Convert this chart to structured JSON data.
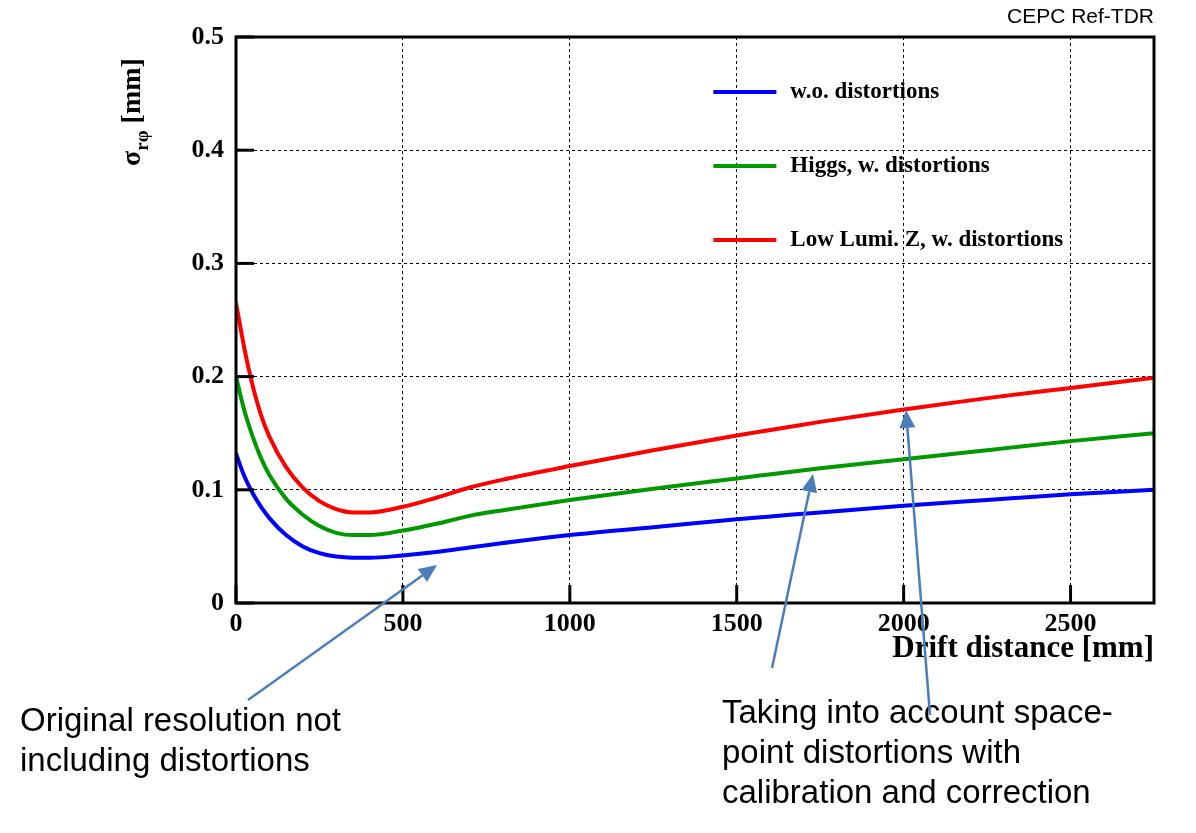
{
  "chart_data": {
    "type": "line",
    "title": "CEPC Ref-TDR",
    "xlabel": "Drift distance [mm]",
    "ylabel": "σ$_{rφ}$ [mm]",
    "x": [
      0,
      25,
      50,
      75,
      100,
      150,
      200,
      250,
      300,
      350,
      400,
      500,
      600,
      700,
      800,
      1000,
      1250,
      1500,
      1750,
      2000,
      2250,
      2500,
      2750
    ],
    "series": [
      {
        "name": "w.o. distortions",
        "color": "#0000ff",
        "values": [
          0.132,
          0.112,
          0.097,
          0.085,
          0.075,
          0.06,
          0.05,
          0.044,
          0.041,
          0.04,
          0.04,
          0.042,
          0.045,
          0.049,
          0.053,
          0.06,
          0.067,
          0.074,
          0.08,
          0.086,
          0.091,
          0.096,
          0.1
        ]
      },
      {
        "name": "Higgs, w. distortions",
        "color": "#009900",
        "values": [
          0.2,
          0.17,
          0.147,
          0.128,
          0.113,
          0.092,
          0.078,
          0.068,
          0.062,
          0.06,
          0.06,
          0.064,
          0.07,
          0.077,
          0.082,
          0.091,
          0.101,
          0.11,
          0.119,
          0.127,
          0.135,
          0.143,
          0.15
        ]
      },
      {
        "name": "Low Lumi. Z, w. distortions",
        "color": "#ff0000",
        "values": [
          0.265,
          0.225,
          0.192,
          0.166,
          0.147,
          0.12,
          0.102,
          0.09,
          0.083,
          0.08,
          0.08,
          0.085,
          0.093,
          0.102,
          0.109,
          0.121,
          0.135,
          0.148,
          0.16,
          0.171,
          0.181,
          0.19,
          0.199
        ]
      }
    ],
    "xlim": [
      0,
      2750
    ],
    "xticks": [
      0,
      500,
      1000,
      1500,
      2000,
      2500
    ],
    "ylim": [
      0,
      0.5
    ],
    "yticks": [
      0,
      {
        "value": 0.1,
        "label": "0.1"
      },
      {
        "value": 0.2,
        "label": "0.2"
      },
      {
        "value": 0.3,
        "label": "0.3"
      },
      {
        "value": 0.4,
        "label": "0.4"
      },
      {
        "value": 0.5,
        "label": "0.5"
      }
    ],
    "grid": true,
    "legend": "top right",
    "marker": "none",
    "line_style": "solid",
    "annotations": [
      "Original resolution not including distortions",
      "Taking into account space-point distortions with calibration and correction"
    ]
  }
}
